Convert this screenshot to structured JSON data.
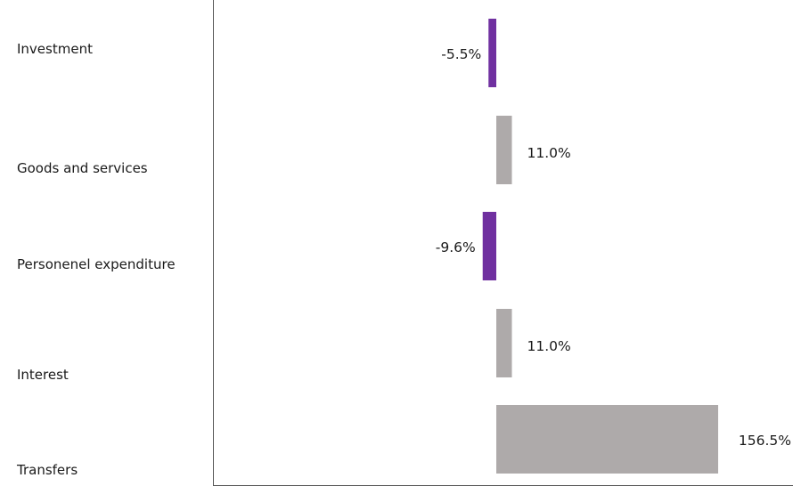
{
  "chart_data": {
    "type": "bar",
    "orientation": "horizontal",
    "categories": [
      "Investment",
      "Goods and services",
      "Personenel expenditure",
      "Interest",
      "Transfers"
    ],
    "values": [
      -5.5,
      11.0,
      -9.6,
      11.0,
      156.5
    ],
    "value_labels": [
      "-5.5%",
      "11.0%",
      "-9.6%",
      "11.0%",
      "156.5%"
    ],
    "negative_color": "#7030a0",
    "positive_color": "#aeaaaa",
    "frame_color": "#595959",
    "grid": false,
    "legend": "none"
  }
}
